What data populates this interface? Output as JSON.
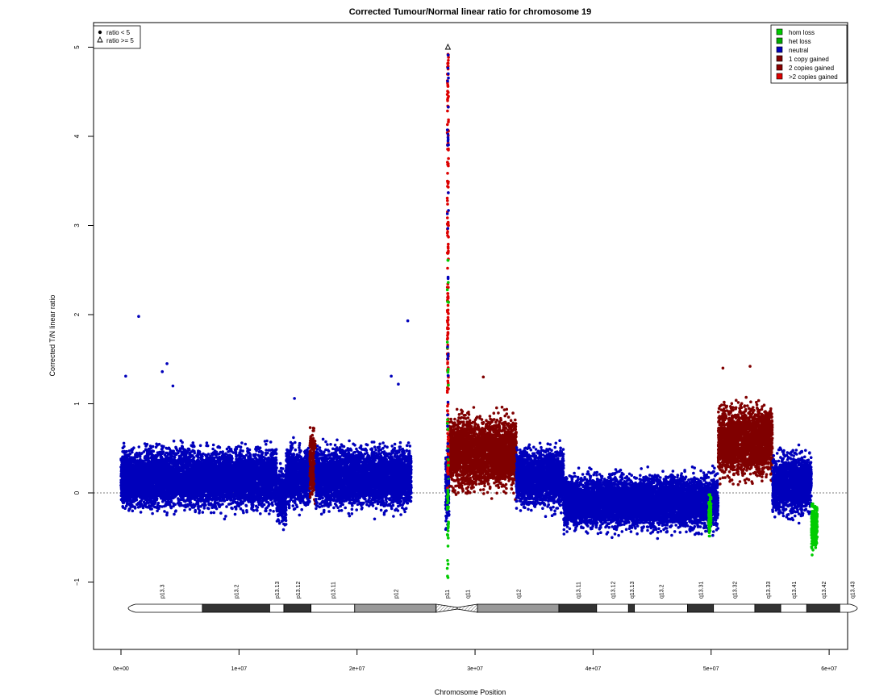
{
  "chart_data": {
    "type": "scatter",
    "title": "Corrected Tumour/Normal linear ratio for chromosome  19",
    "xlabel": "Chromosome Position",
    "ylabel": "Corrected T/N linear ratio",
    "xlim": [
      0,
      61500000
    ],
    "ylim": [
      -1.8,
      5.25
    ],
    "x_ticks": [
      0,
      10000000,
      20000000,
      30000000,
      40000000,
      50000000,
      60000000
    ],
    "x_tick_labels": [
      "0e+00",
      "1e+07",
      "2e+07",
      "3e+07",
      "4e+07",
      "5e+07",
      "6e+07"
    ],
    "y_ticks": [
      -1,
      0,
      1,
      2,
      3,
      4,
      5
    ],
    "y_tick_labels": [
      "−1",
      "0",
      "1",
      "2",
      "3",
      "4",
      "5"
    ],
    "reference_line_y": 0,
    "grid": false,
    "shape_legend": {
      "placement": "top-left",
      "entries": [
        {
          "symbol": "filled-circle",
          "label": "ratio < 5"
        },
        {
          "symbol": "open-triangle",
          "label": "ratio >= 5"
        }
      ]
    },
    "state_legend": {
      "placement": "top-right",
      "entries": [
        {
          "label": "hom loss",
          "color": "#00cc00"
        },
        {
          "label": "het loss",
          "color": "#00aa00"
        },
        {
          "label": "neutral",
          "color": "#0000bb"
        },
        {
          "label": "1 copy gained",
          "color": "#800000"
        },
        {
          "label": "2 copies gained",
          "color": "#8b0000"
        },
        {
          "label": ">2 copies gained",
          "color": "#dd0000"
        }
      ]
    },
    "segments": [
      {
        "state": "neutral",
        "start": 0,
        "end": 13200000,
        "mean": 0.16,
        "spread": 0.2
      },
      {
        "state": "neutral",
        "start": 13200000,
        "end": 14000000,
        "mean": -0.05,
        "spread": 0.18
      },
      {
        "state": "neutral",
        "start": 14000000,
        "end": 16000000,
        "mean": 0.18,
        "spread": 0.2
      },
      {
        "state": "1 copy gained",
        "start": 16000000,
        "end": 16500000,
        "mean": 0.3,
        "spread": 0.25
      },
      {
        "state": "neutral",
        "start": 16500000,
        "end": 24600000,
        "mean": 0.17,
        "spread": 0.2
      },
      {
        "state": "neutral",
        "start": 27500000,
        "end": 27800000,
        "mean": 0.1,
        "spread": 0.3
      },
      {
        "state": "1 copy gained",
        "start": 27800000,
        "end": 33500000,
        "mean": 0.45,
        "spread": 0.24
      },
      {
        "state": "neutral",
        "start": 33500000,
        "end": 37500000,
        "mean": 0.17,
        "spread": 0.2
      },
      {
        "state": "neutral",
        "start": 37500000,
        "end": 50600000,
        "mean": -0.1,
        "spread": 0.18
      },
      {
        "state": "hom loss",
        "start": 49800000,
        "end": 50000000,
        "mean": -0.25,
        "spread": 0.15
      },
      {
        "state": "1 copy gained",
        "start": 50600000,
        "end": 55200000,
        "mean": 0.58,
        "spread": 0.24
      },
      {
        "state": "neutral",
        "start": 55200000,
        "end": 58500000,
        "mean": 0.1,
        "spread": 0.2
      },
      {
        "state": "hom loss",
        "start": 58500000,
        "end": 59000000,
        "mean": -0.38,
        "spread": 0.15
      }
    ],
    "spike": {
      "x": 27700000,
      "ymin": -0.97,
      "ymax": 4.95,
      "triangle_y": 5.0
    },
    "outliers": [
      {
        "x": 1500000,
        "y": 1.98,
        "state": "neutral"
      },
      {
        "x": 3900000,
        "y": 1.45,
        "state": "neutral"
      },
      {
        "x": 3500000,
        "y": 1.36,
        "state": "neutral"
      },
      {
        "x": 4400000,
        "y": 1.2,
        "state": "neutral"
      },
      {
        "x": 400000,
        "y": 1.31,
        "state": "neutral"
      },
      {
        "x": 24300000,
        "y": 1.93,
        "state": "neutral"
      },
      {
        "x": 22900000,
        "y": 1.31,
        "state": "neutral"
      },
      {
        "x": 23500000,
        "y": 1.22,
        "state": "neutral"
      },
      {
        "x": 14700000,
        "y": 1.06,
        "state": "neutral"
      },
      {
        "x": 30700000,
        "y": 1.3,
        "state": "1 copy gained"
      },
      {
        "x": 53300000,
        "y": 1.42,
        "state": "1 copy gained"
      },
      {
        "x": 51000000,
        "y": 1.4,
        "state": "1 copy gained"
      }
    ],
    "bands": [
      {
        "name": "p13.3",
        "start": 0,
        "end": 6900000,
        "stain": "gneg"
      },
      {
        "name": "p13.2",
        "start": 6900000,
        "end": 12600000,
        "stain": "gpos75"
      },
      {
        "name": "p13.13",
        "start": 12600000,
        "end": 13800000,
        "stain": "gneg"
      },
      {
        "name": "p13.12",
        "start": 13800000,
        "end": 16100000,
        "stain": "gpos75"
      },
      {
        "name": "p13.11",
        "start": 16100000,
        "end": 19800000,
        "stain": "gneg"
      },
      {
        "name": "p12",
        "start": 19800000,
        "end": 26700000,
        "stain": "gvar"
      },
      {
        "name": "p11",
        "start": 26700000,
        "end": 28500000,
        "stain": "acen"
      },
      {
        "name": "q11",
        "start": 28500000,
        "end": 30200000,
        "stain": "acen"
      },
      {
        "name": "q12",
        "start": 30200000,
        "end": 37100000,
        "stain": "gvar"
      },
      {
        "name": "q13.11",
        "start": 37100000,
        "end": 40300000,
        "stain": "gpos75"
      },
      {
        "name": "q13.12",
        "start": 40300000,
        "end": 43000000,
        "stain": "gneg"
      },
      {
        "name": "q13.13",
        "start": 43000000,
        "end": 43500000,
        "stain": "gpos75"
      },
      {
        "name": "q13.2",
        "start": 43500000,
        "end": 48000000,
        "stain": "gneg"
      },
      {
        "name": "q13.31",
        "start": 48000000,
        "end": 50200000,
        "stain": "gpos75"
      },
      {
        "name": "q13.32",
        "start": 50200000,
        "end": 53700000,
        "stain": "gneg"
      },
      {
        "name": "q13.33",
        "start": 53700000,
        "end": 55900000,
        "stain": "gpos75"
      },
      {
        "name": "q13.41",
        "start": 55900000,
        "end": 58100000,
        "stain": "gneg"
      },
      {
        "name": "q13.42",
        "start": 58100000,
        "end": 60900000,
        "stain": "gpos75"
      },
      {
        "name": "q13.43",
        "start": 60900000,
        "end": 63000000,
        "stain": "gneg"
      }
    ]
  }
}
